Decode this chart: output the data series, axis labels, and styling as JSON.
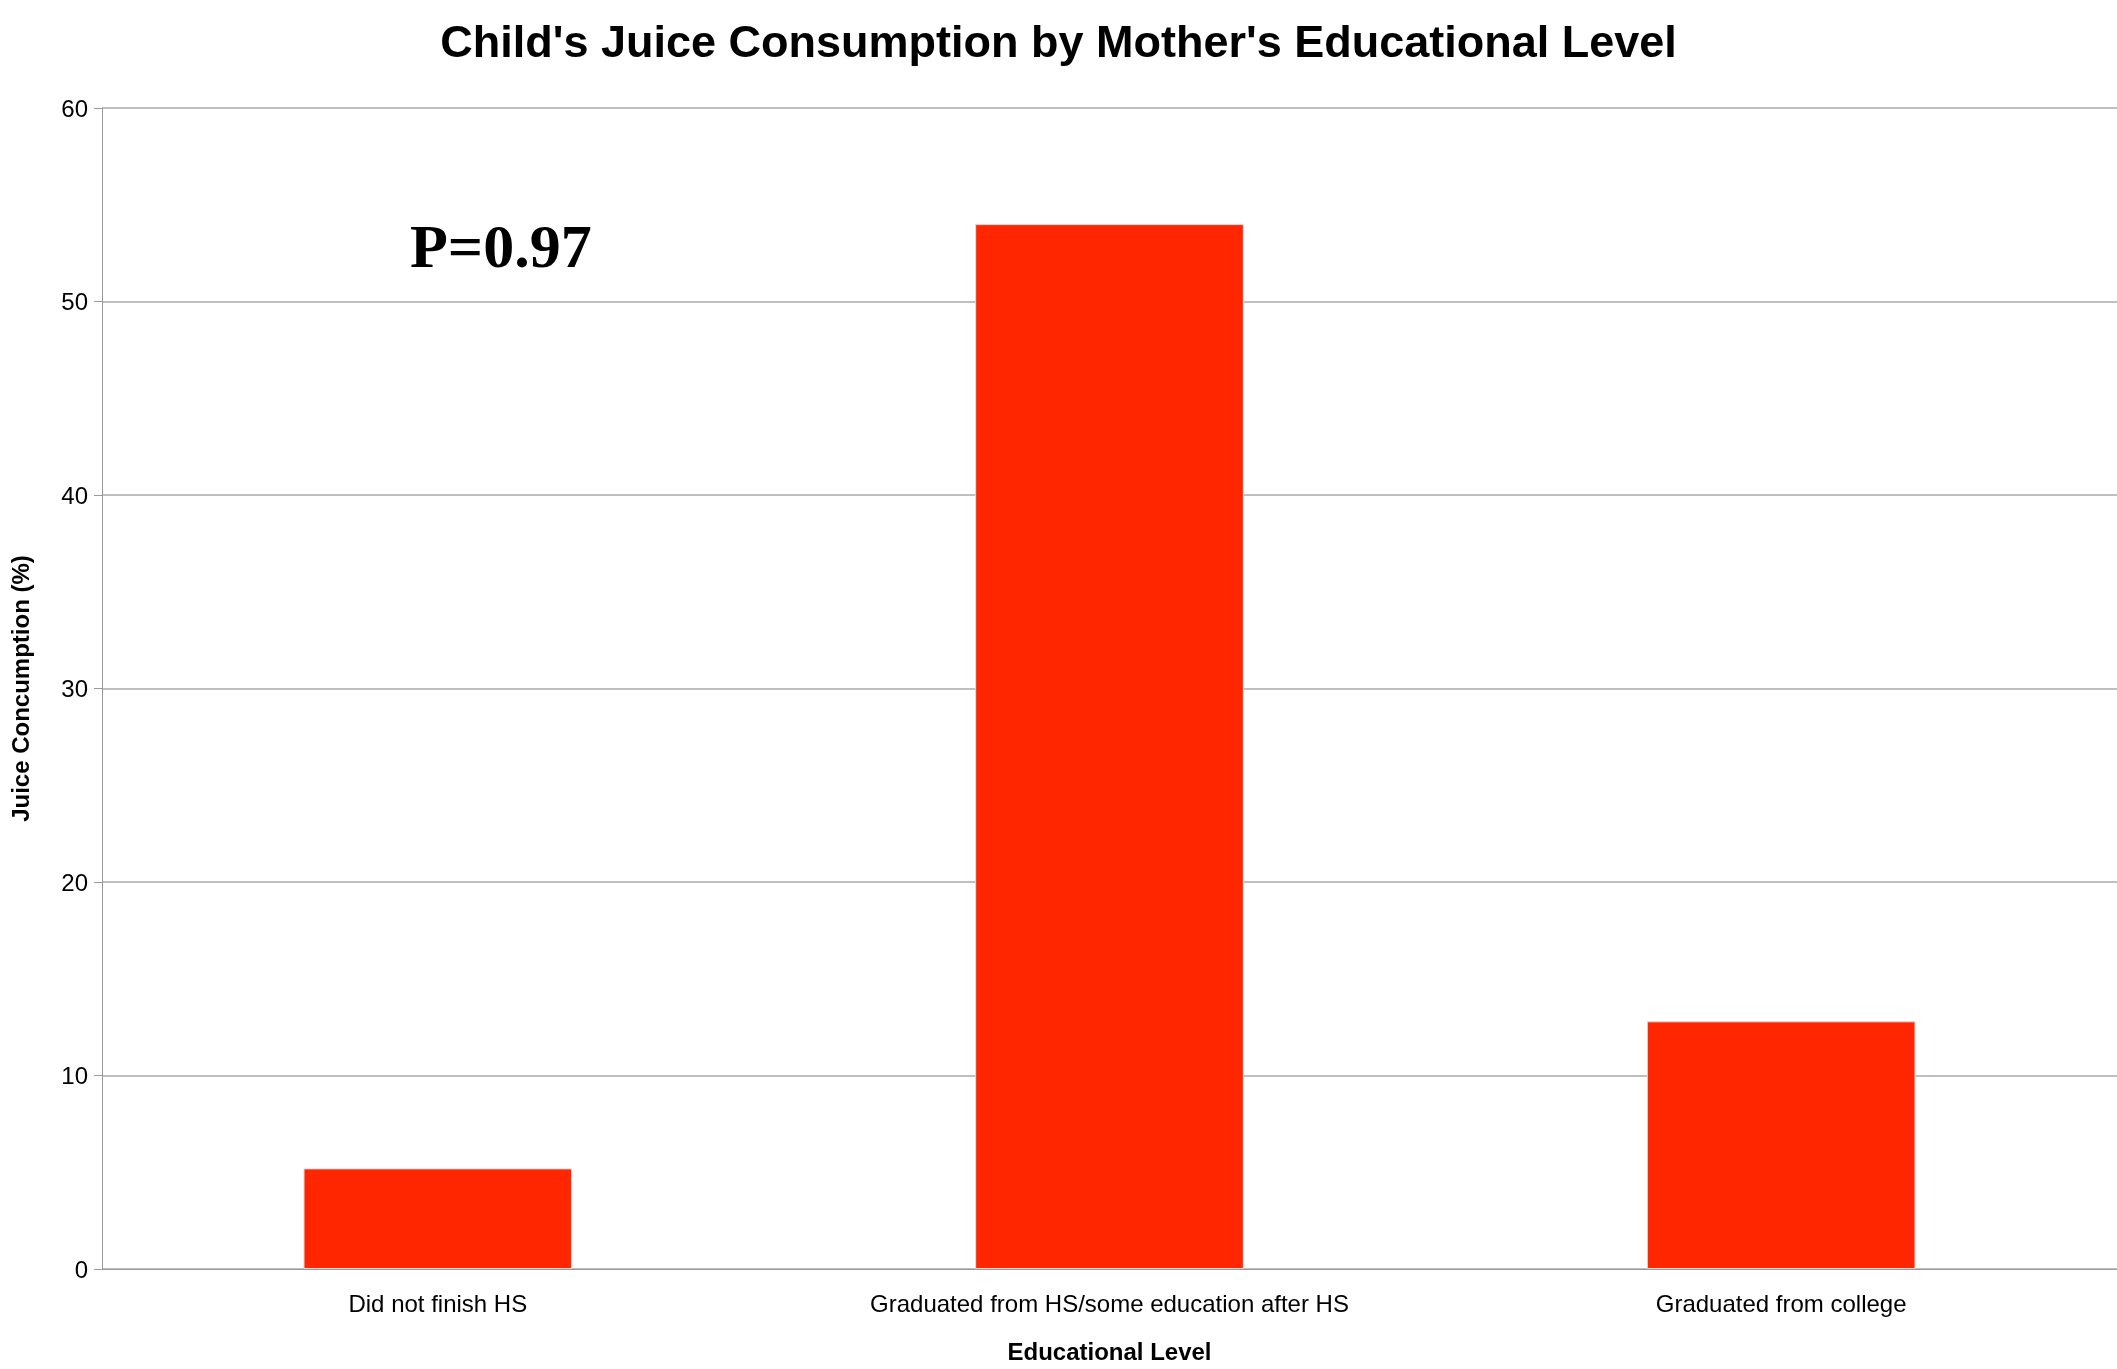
{
  "chart_data": {
    "type": "bar",
    "title": "Child's Juice Consumption by Mother's Educational Level",
    "xlabel": "Educational Level",
    "ylabel": "Juice Concumption (%)",
    "categories": [
      "Did not finish HS",
      "Graduated from HS/some education after HS",
      "Graduated from college"
    ],
    "series": [
      {
        "color": "#ff2600",
        "values": [
          5.2,
          54,
          12.8
        ]
      }
    ],
    "ylim": [
      0,
      60
    ],
    "yticks": [
      0,
      10,
      20,
      30,
      40,
      50,
      60
    ],
    "grid": "y",
    "annotations": [
      "P=0.97"
    ]
  }
}
